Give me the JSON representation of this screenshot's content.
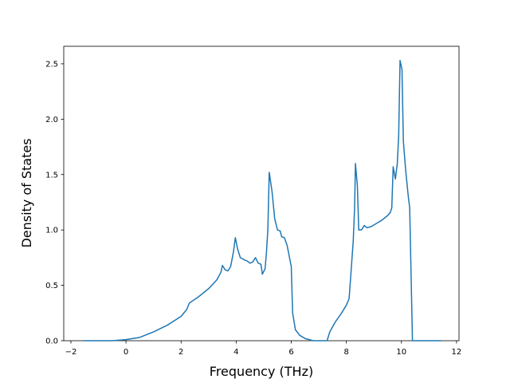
{
  "chart_data": {
    "type": "line",
    "x_label": "Frequency (THz)",
    "y_label": "Density of States",
    "xlim": [
      -2.26,
      12.09
    ],
    "ylim": [
      0,
      2.658
    ],
    "xticks": [
      {
        "value": -2,
        "label": "−2"
      },
      0,
      2,
      4,
      6,
      8,
      10,
      12
    ],
    "yticks": [
      {
        "value": 0,
        "label": "0.0"
      },
      0.5,
      {
        "value": 1,
        "label": "1.0"
      },
      1.5,
      {
        "value": 2,
        "label": "2.0"
      },
      2.5
    ],
    "series": [
      {
        "color": "#1f77b4",
        "x": [
          -1.55,
          -0.5,
          0,
          0.5,
          1,
          1.5,
          2,
          2.2,
          2.3,
          2.6,
          3,
          3.3,
          3.45,
          3.5,
          3.6,
          3.7,
          3.8,
          3.9,
          3.97,
          4.05,
          4.15,
          4.3,
          4.4,
          4.5,
          4.6,
          4.7,
          4.8,
          4.9,
          4.95,
          5.05,
          5.1,
          5.15,
          5.2,
          5.3,
          5.4,
          5.5,
          5.6,
          5.65,
          5.75,
          5.85,
          6.0,
          6.05,
          6.15,
          6.3,
          6.5,
          6.8,
          7.3,
          7.4,
          7.6,
          7.8,
          8.0,
          8.1,
          8.15,
          8.25,
          8.3,
          8.33,
          8.4,
          8.45,
          8.55,
          8.65,
          8.75,
          8.9,
          9.1,
          9.3,
          9.5,
          9.6,
          9.65,
          9.7,
          9.78,
          9.85,
          9.9,
          9.95,
          10.02,
          10.07,
          10.15,
          10.25,
          10.3,
          10.35,
          10.4,
          11.45
        ],
        "values": [
          0,
          0,
          0.01,
          0.03,
          0.08,
          0.14,
          0.22,
          0.28,
          0.34,
          0.39,
          0.47,
          0.55,
          0.62,
          0.68,
          0.64,
          0.63,
          0.67,
          0.8,
          0.93,
          0.83,
          0.75,
          0.73,
          0.72,
          0.7,
          0.71,
          0.75,
          0.7,
          0.69,
          0.6,
          0.65,
          0.8,
          1.0,
          1.52,
          1.35,
          1.1,
          1.0,
          0.99,
          0.94,
          0.93,
          0.86,
          0.67,
          0.25,
          0.1,
          0.05,
          0.02,
          0,
          0,
          0.08,
          0.17,
          0.24,
          0.32,
          0.38,
          0.55,
          0.9,
          1.2,
          1.6,
          1.4,
          1.0,
          1.0,
          1.04,
          1.02,
          1.03,
          1.06,
          1.09,
          1.13,
          1.16,
          1.2,
          1.57,
          1.46,
          1.6,
          1.85,
          2.53,
          2.45,
          1.8,
          1.55,
          1.3,
          1.2,
          0.6,
          0,
          0
        ]
      }
    ]
  }
}
